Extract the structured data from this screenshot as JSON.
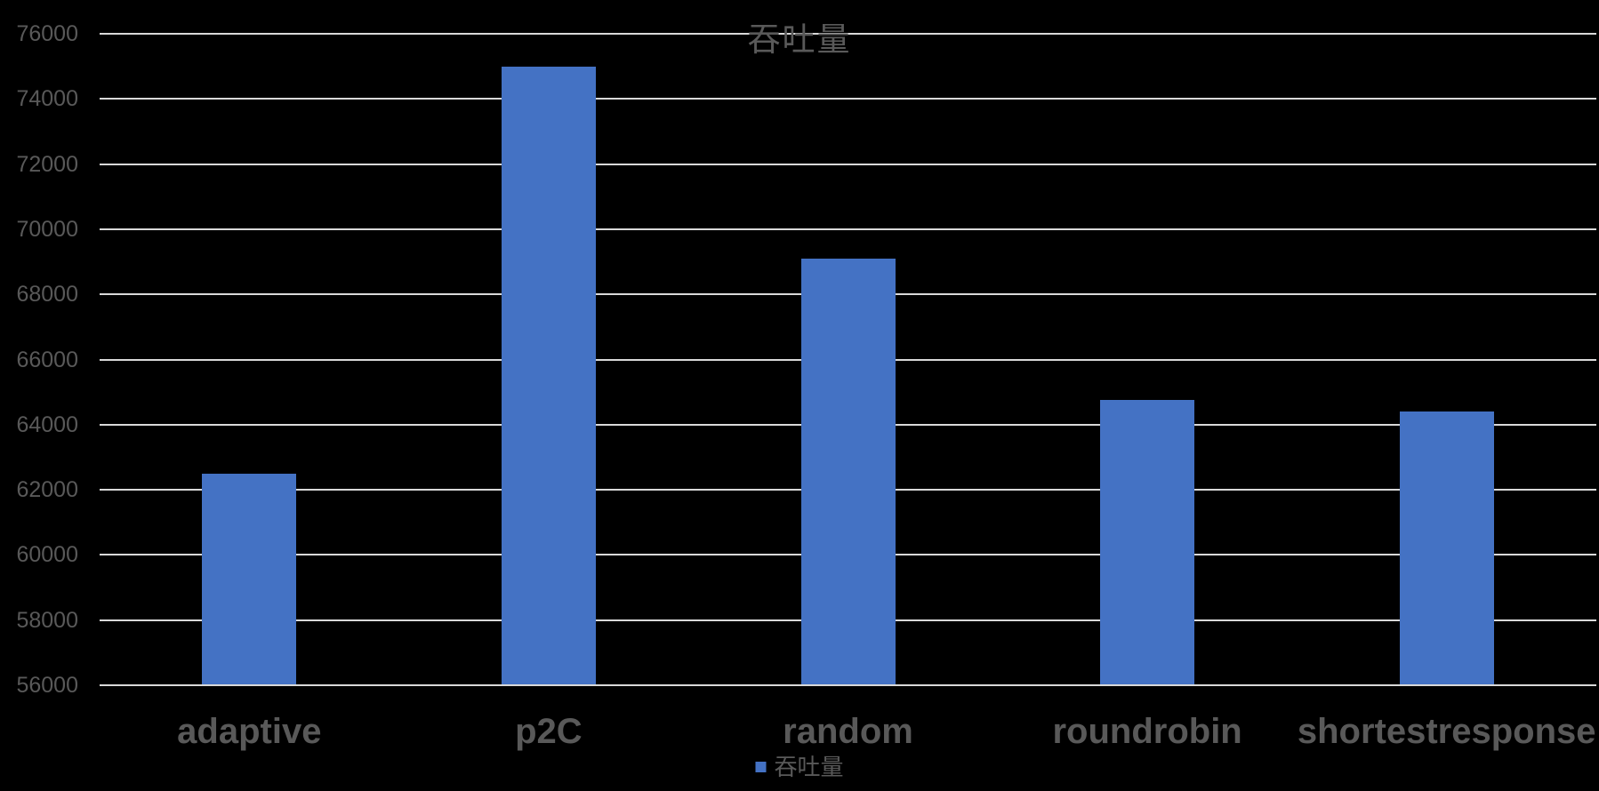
{
  "chart_data": {
    "type": "bar",
    "title": "吞吐量",
    "categories": [
      "adaptive",
      "p2C",
      "random",
      "roundrobin",
      "shortestresponse"
    ],
    "series": [
      {
        "name": "吞吐量",
        "values": [
          62500,
          75000,
          69100,
          64750,
          64400
        ]
      }
    ],
    "xlabel": "",
    "ylabel": "",
    "ylim": [
      56000,
      76000
    ],
    "ytick_step": 2000,
    "yticks": [
      76000,
      74000,
      72000,
      70000,
      68000,
      66000,
      64000,
      62000,
      60000,
      58000,
      56000
    ],
    "grid": true,
    "legend": {
      "label": "吞吐量",
      "position": "bottom-center"
    },
    "colors": {
      "bar": "#4472C4",
      "background": "#000000",
      "gridline": "#D9D9D9",
      "axis_text": "#595959",
      "category_text": "#595959",
      "title_text": "#595959",
      "legend_text": "#595959",
      "legend_marker": "#4472C4"
    }
  }
}
